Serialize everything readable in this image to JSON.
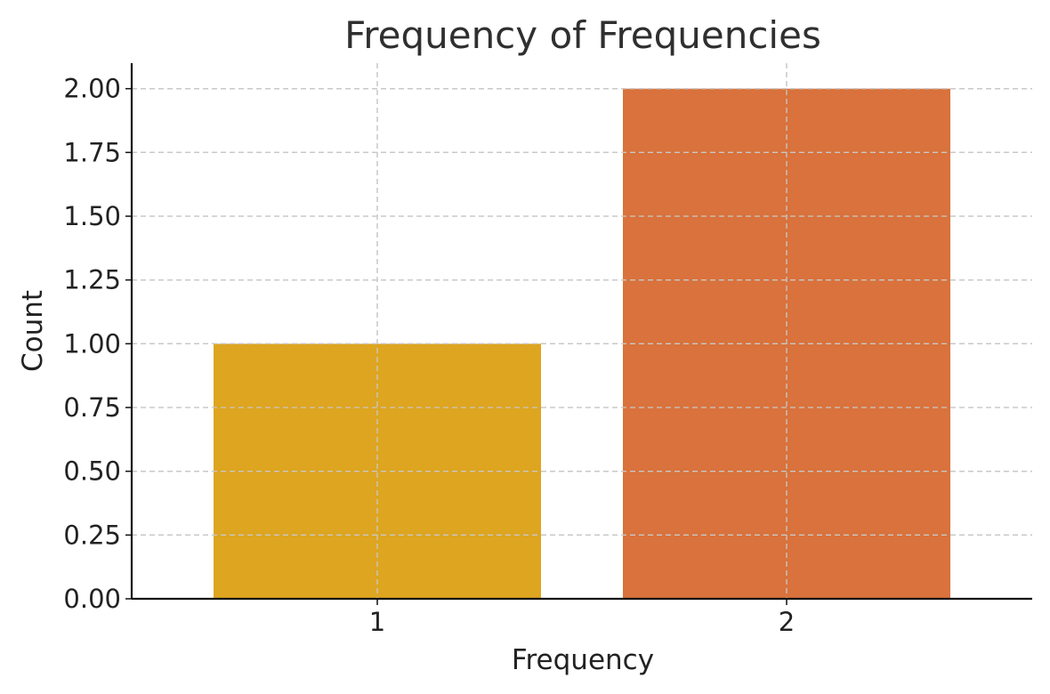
{
  "chart_data": {
    "type": "bar",
    "title": "Frequency of Frequencies",
    "xlabel": "Frequency",
    "ylabel": "Count",
    "categories": [
      "1",
      "2"
    ],
    "values": [
      1,
      2
    ],
    "colors": [
      "#DDA520",
      "#D9723C"
    ],
    "ylim": [
      0,
      2.1
    ],
    "yticks": [
      0,
      0.25,
      0.5,
      0.75,
      1.0,
      1.25,
      1.5,
      1.75,
      2.0
    ],
    "ytick_labels": [
      "0.00",
      "0.25",
      "0.50",
      "0.75",
      "1.00",
      "1.25",
      "1.50",
      "1.75",
      "2.00"
    ],
    "grid": true,
    "legend": "none"
  }
}
